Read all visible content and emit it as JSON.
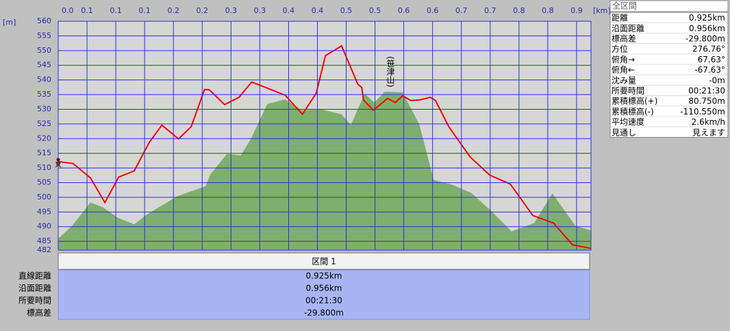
{
  "chart_data": {
    "type": "elevation-profile",
    "xlabel": "[km]",
    "ylabel": "[m]",
    "xlim": [
      0,
      0.925
    ],
    "ylim": [
      482,
      560
    ],
    "xticks": [
      {
        "value": 0,
        "label": "0.0"
      },
      {
        "value": 0.05,
        "label": "0.1"
      },
      {
        "value": 0.1,
        "label": "0.1"
      },
      {
        "value": 0.15,
        "label": "0.1"
      },
      {
        "value": 0.2,
        "label": "0.2"
      },
      {
        "value": 0.25,
        "label": "0.2"
      },
      {
        "value": 0.3,
        "label": "0.3"
      },
      {
        "value": 0.35,
        "label": "0.3"
      },
      {
        "value": 0.4,
        "label": "0.4"
      },
      {
        "value": 0.45,
        "label": "0.4"
      },
      {
        "value": 0.5,
        "label": "0.5"
      },
      {
        "value": 0.55,
        "label": "0.5"
      },
      {
        "value": 0.6,
        "label": "0.6"
      },
      {
        "value": 0.65,
        "label": "0.6"
      },
      {
        "value": 0.7,
        "label": "0.7"
      },
      {
        "value": 0.75,
        "label": "0.7"
      },
      {
        "value": 0.8,
        "label": "0.8"
      },
      {
        "value": 0.85,
        "label": "0.8"
      },
      {
        "value": 0.9,
        "label": "0.9"
      }
    ],
    "yticks": [
      560,
      555,
      550,
      545,
      540,
      535,
      530,
      525,
      520,
      515,
      510,
      505,
      500,
      495,
      490,
      485,
      482
    ],
    "grid": true,
    "annotation": "(笹津山)",
    "series": [
      {
        "type": "area",
        "color": "#7eaf6e",
        "x": [
          0,
          0.024,
          0.056,
          0.078,
          0.103,
          0.132,
          0.155,
          0.206,
          0.256,
          0.264,
          0.293,
          0.317,
          0.335,
          0.363,
          0.394,
          0.423,
          0.458,
          0.492,
          0.508,
          0.532,
          0.549,
          0.567,
          0.598,
          0.627,
          0.652,
          0.684,
          0.717,
          0.75,
          0.787,
          0.826,
          0.858,
          0.898,
          0.925
        ],
        "values": [
          485.9,
          490.3,
          498.2,
          496.6,
          493.1,
          490.8,
          494.3,
          500.3,
          503.8,
          507.8,
          514.8,
          514.3,
          520.1,
          531.8,
          533.4,
          529.7,
          529.9,
          528.3,
          524.6,
          535.3,
          532.3,
          536,
          535.8,
          524.8,
          505.9,
          504.3,
          501.5,
          495.7,
          488.4,
          491.2,
          501.3,
          490.3,
          488.7
        ]
      },
      {
        "type": "line",
        "color": "#ff0000",
        "x": [
          0,
          0.026,
          0.056,
          0.081,
          0.105,
          0.132,
          0.158,
          0.18,
          0.209,
          0.231,
          0.254,
          0.262,
          0.289,
          0.314,
          0.336,
          0.394,
          0.424,
          0.448,
          0.464,
          0.492,
          0.52,
          0.527,
          0.53,
          0.547,
          0.572,
          0.585,
          0.598,
          0.612,
          0.628,
          0.646,
          0.655,
          0.678,
          0.715,
          0.749,
          0.785,
          0.824,
          0.86,
          0.893,
          0.925
        ],
        "values": [
          512.2,
          511.5,
          506.6,
          498.2,
          506.9,
          509,
          518.7,
          524.6,
          519.9,
          524.1,
          536.7,
          536.7,
          531.6,
          534.1,
          539.3,
          534.8,
          528.3,
          535.5,
          548.3,
          551.6,
          538.6,
          537.4,
          533.2,
          529.7,
          533.7,
          532.3,
          534.6,
          533,
          533.2,
          534.1,
          533,
          524.1,
          513.8,
          507.6,
          504.5,
          493.8,
          491.2,
          483.8,
          482.6
        ]
      }
    ]
  },
  "summary_panel": {
    "title": "全区間",
    "rows": [
      [
        "距離",
        "0.925km"
      ],
      [
        "沿面距離",
        "0.956km"
      ],
      [
        "標高差",
        "-29.800m"
      ],
      [
        "方位",
        "276.76°"
      ],
      [
        "俯角→",
        "67.63°"
      ],
      [
        "俯角←",
        "-67.63°"
      ],
      [
        "沈み量",
        "-0m"
      ],
      [
        "所要時間",
        "00:21:30"
      ],
      [
        "累積標高(+)",
        "80.750m"
      ],
      [
        "累積標高(-)",
        "-110.550m"
      ],
      [
        "平均速度",
        "2.6km/h"
      ],
      [
        "見通し",
        "見えます"
      ]
    ]
  },
  "section_table": {
    "header": "区間 1",
    "rows": [
      [
        "直線距離",
        "0.925km"
      ],
      [
        "沿面距離",
        "0.956km"
      ],
      [
        "所要時間",
        "00:21:30"
      ],
      [
        "標高差",
        "-29.800m"
      ]
    ]
  }
}
